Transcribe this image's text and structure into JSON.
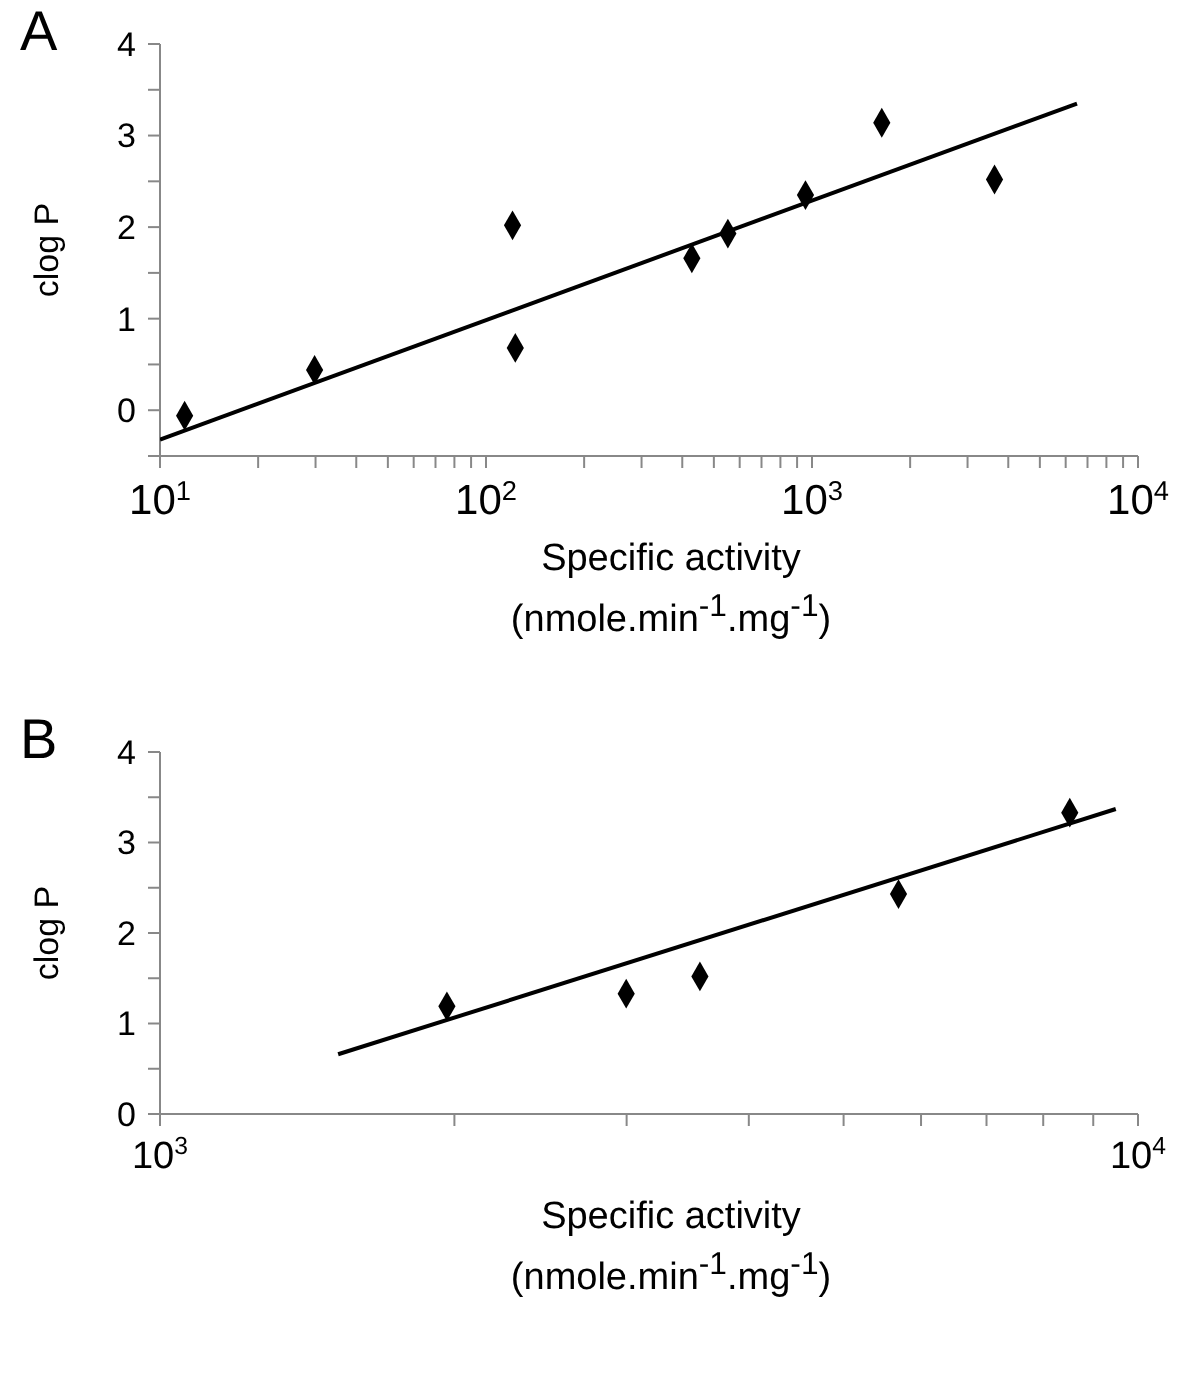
{
  "chart_data": [
    {
      "type": "scatter",
      "annotations": [
        "A"
      ],
      "xlabel": "Specific activity\n(nmole.min$^{-1}$.mg$^{-1}$)",
      "ylabel": "clog P",
      "log": "x",
      "xlim": [
        10,
        10000
      ],
      "xticks": [
        {
          "value": 10,
          "label": "10$^{1}$"
        },
        {
          "value": 20,
          "label": null
        },
        {
          "value": 30,
          "label": null
        },
        {
          "value": 40,
          "label": null
        },
        {
          "value": 50,
          "label": null
        },
        {
          "value": 60,
          "label": null
        },
        {
          "value": 70,
          "label": null
        },
        {
          "value": 80,
          "label": null
        },
        {
          "value": 90,
          "label": null
        },
        {
          "value": 100,
          "label": "10$^{2}$"
        },
        {
          "value": 200,
          "label": null
        },
        {
          "value": 300,
          "label": null
        },
        {
          "value": 400,
          "label": null
        },
        {
          "value": 500,
          "label": null
        },
        {
          "value": 600,
          "label": null
        },
        {
          "value": 700,
          "label": null
        },
        {
          "value": 800,
          "label": null
        },
        {
          "value": 900,
          "label": null
        },
        {
          "value": 1000,
          "label": "10$^{3}$"
        },
        {
          "value": 2000,
          "label": null
        },
        {
          "value": 3000,
          "label": null
        },
        {
          "value": 4000,
          "label": null
        },
        {
          "value": 5000,
          "label": null
        },
        {
          "value": 6000,
          "label": null
        },
        {
          "value": 7000,
          "label": null
        },
        {
          "value": 8000,
          "label": null
        },
        {
          "value": 9000,
          "label": null
        },
        {
          "value": 10000,
          "label": "10$^{4}$"
        }
      ],
      "ylim": [
        -0.5,
        4
      ],
      "yticks": [
        {
          "value": -0.5,
          "label": null
        },
        0,
        {
          "value": 0.5,
          "label": null
        },
        1,
        {
          "value": 1.5,
          "label": null
        },
        2,
        {
          "value": 2.5,
          "label": null
        },
        3,
        {
          "value": 3.5,
          "label": null
        },
        4
      ],
      "series": [
        {
          "type": "scatter",
          "marker": "diamond",
          "color": "#000000",
          "x": [
            11.9,
            29.8,
            120.6,
            123,
            428,
            552,
            955,
            1637,
            3630
          ],
          "values": [
            -0.06,
            0.44,
            2.02,
            0.68,
            1.66,
            1.93,
            2.35,
            3.14,
            2.52
          ]
        },
        {
          "type": "line",
          "marker": "none",
          "line_style": "solid",
          "color": "#000000",
          "x": [
            10,
            6500
          ],
          "values": [
            -0.32,
            3.35
          ]
        }
      ]
    },
    {
      "type": "scatter",
      "annotations": [
        "B"
      ],
      "xlabel": "Specific activity\n(nmole.min$^{-1}$.mg$^{-1}$)",
      "ylabel": "clog P",
      "log": "x",
      "xlim": [
        1000,
        10000
      ],
      "xticks": [
        {
          "value": 1000,
          "label": "10$^{3}$"
        },
        {
          "value": 2000,
          "label": null
        },
        {
          "value": 3000,
          "label": null
        },
        {
          "value": 4000,
          "label": null
        },
        {
          "value": 5000,
          "label": null
        },
        {
          "value": 6000,
          "label": null
        },
        {
          "value": 7000,
          "label": null
        },
        {
          "value": 8000,
          "label": null
        },
        {
          "value": 9000,
          "label": null
        },
        {
          "value": 10000,
          "label": "10$^{4}$"
        }
      ],
      "ylim": [
        0,
        4
      ],
      "yticks": [
        0,
        {
          "value": 0.5,
          "label": null
        },
        1,
        {
          "value": 1.5,
          "label": null
        },
        2,
        {
          "value": 2.5,
          "label": null
        },
        3,
        {
          "value": 3.5,
          "label": null
        },
        4
      ],
      "series": [
        {
          "type": "scatter",
          "marker": "diamond",
          "color": "#000000",
          "x": [
            1965,
            2997,
            3565,
            5690,
            8516
          ],
          "values": [
            1.19,
            1.33,
            1.52,
            2.43,
            3.33
          ]
        },
        {
          "type": "line",
          "marker": "none",
          "line_style": "solid",
          "color": "#000000",
          "x": [
            1521,
            9490
          ],
          "values": [
            0.66,
            3.37
          ]
        }
      ]
    }
  ]
}
